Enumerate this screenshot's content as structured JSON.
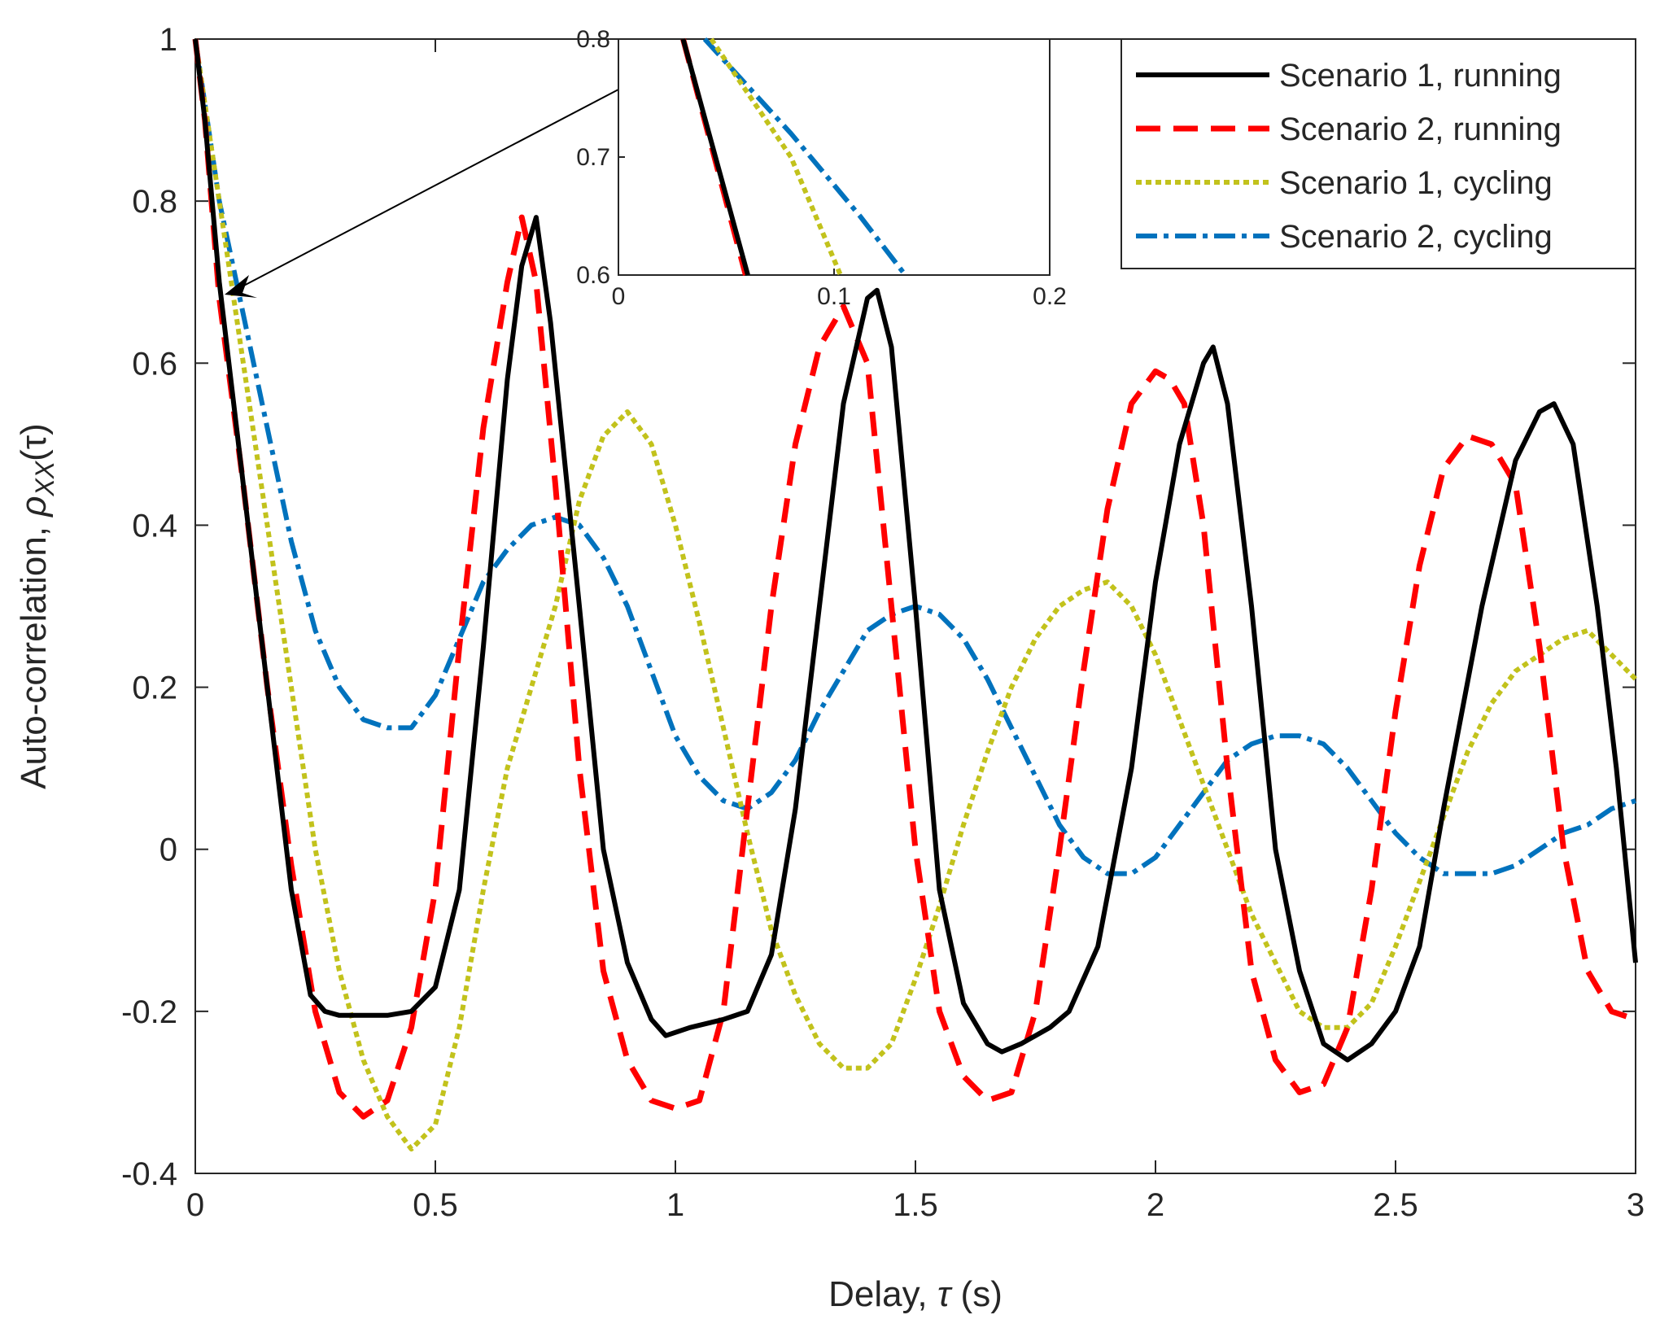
{
  "chart_data": {
    "type": "line",
    "xlabel_prefix": "Delay, ",
    "xlabel_symbol": "τ",
    "xlabel_suffix": " (s)",
    "ylabel_prefix": "Auto-correlation, ",
    "ylabel_symbol": "ρ",
    "ylabel_sub": "XX",
    "ylabel_arg": "(τ)",
    "xlim": [
      0,
      3
    ],
    "ylim": [
      -0.4,
      1
    ],
    "xticks": [
      0,
      0.5,
      1,
      1.5,
      2,
      2.5,
      3
    ],
    "xtick_labels": [
      "0",
      "0.5",
      "1",
      "1.5",
      "2",
      "2.5",
      "3"
    ],
    "yticks": [
      -0.4,
      -0.2,
      0,
      0.2,
      0.4,
      0.6,
      0.8,
      1
    ],
    "ytick_labels": [
      "-0.4",
      "-0.2",
      "0",
      "0.2",
      "0.4",
      "0.6",
      "0.8",
      "1"
    ],
    "legend_position": "top-right",
    "series": [
      {
        "name": "Scenario 1, running",
        "color": "#000000",
        "style": "solid",
        "points": [
          [
            0,
            1
          ],
          [
            0.02,
            0.9
          ],
          [
            0.05,
            0.7
          ],
          [
            0.1,
            0.45
          ],
          [
            0.15,
            0.2
          ],
          [
            0.2,
            -0.05
          ],
          [
            0.24,
            -0.18
          ],
          [
            0.27,
            -0.2
          ],
          [
            0.3,
            -0.205
          ],
          [
            0.35,
            -0.205
          ],
          [
            0.4,
            -0.205
          ],
          [
            0.45,
            -0.2
          ],
          [
            0.5,
            -0.17
          ],
          [
            0.55,
            -0.05
          ],
          [
            0.6,
            0.25
          ],
          [
            0.65,
            0.58
          ],
          [
            0.68,
            0.72
          ],
          [
            0.71,
            0.78
          ],
          [
            0.74,
            0.65
          ],
          [
            0.8,
            0.3
          ],
          [
            0.85,
            0.0
          ],
          [
            0.9,
            -0.14
          ],
          [
            0.95,
            -0.21
          ],
          [
            0.98,
            -0.23
          ],
          [
            1.03,
            -0.22
          ],
          [
            1.1,
            -0.21
          ],
          [
            1.15,
            -0.2
          ],
          [
            1.2,
            -0.13
          ],
          [
            1.25,
            0.05
          ],
          [
            1.3,
            0.3
          ],
          [
            1.35,
            0.55
          ],
          [
            1.4,
            0.68
          ],
          [
            1.42,
            0.69
          ],
          [
            1.45,
            0.62
          ],
          [
            1.5,
            0.3
          ],
          [
            1.55,
            -0.05
          ],
          [
            1.6,
            -0.19
          ],
          [
            1.65,
            -0.24
          ],
          [
            1.68,
            -0.25
          ],
          [
            1.72,
            -0.24
          ],
          [
            1.78,
            -0.22
          ],
          [
            1.82,
            -0.2
          ],
          [
            1.88,
            -0.12
          ],
          [
            1.95,
            0.1
          ],
          [
            2.0,
            0.33
          ],
          [
            2.05,
            0.5
          ],
          [
            2.1,
            0.6
          ],
          [
            2.12,
            0.62
          ],
          [
            2.15,
            0.55
          ],
          [
            2.2,
            0.3
          ],
          [
            2.25,
            0.0
          ],
          [
            2.3,
            -0.15
          ],
          [
            2.35,
            -0.24
          ],
          [
            2.4,
            -0.26
          ],
          [
            2.45,
            -0.24
          ],
          [
            2.5,
            -0.2
          ],
          [
            2.55,
            -0.12
          ],
          [
            2.6,
            0.05
          ],
          [
            2.68,
            0.3
          ],
          [
            2.75,
            0.48
          ],
          [
            2.8,
            0.54
          ],
          [
            2.83,
            0.55
          ],
          [
            2.87,
            0.5
          ],
          [
            2.92,
            0.3
          ],
          [
            2.96,
            0.1
          ],
          [
            3.0,
            -0.14
          ]
        ]
      },
      {
        "name": "Scenario 2, running",
        "color": "#ff0000",
        "style": "dashed",
        "points": [
          [
            0,
            1
          ],
          [
            0.02,
            0.9
          ],
          [
            0.05,
            0.68
          ],
          [
            0.1,
            0.45
          ],
          [
            0.15,
            0.2
          ],
          [
            0.2,
            -0.02
          ],
          [
            0.25,
            -0.2
          ],
          [
            0.3,
            -0.3
          ],
          [
            0.35,
            -0.33
          ],
          [
            0.4,
            -0.31
          ],
          [
            0.45,
            -0.22
          ],
          [
            0.5,
            -0.05
          ],
          [
            0.55,
            0.25
          ],
          [
            0.6,
            0.52
          ],
          [
            0.65,
            0.7
          ],
          [
            0.68,
            0.78
          ],
          [
            0.71,
            0.7
          ],
          [
            0.75,
            0.45
          ],
          [
            0.8,
            0.1
          ],
          [
            0.85,
            -0.15
          ],
          [
            0.9,
            -0.26
          ],
          [
            0.95,
            -0.31
          ],
          [
            1.0,
            -0.32
          ],
          [
            1.05,
            -0.31
          ],
          [
            1.1,
            -0.2
          ],
          [
            1.15,
            0.05
          ],
          [
            1.2,
            0.3
          ],
          [
            1.25,
            0.5
          ],
          [
            1.3,
            0.62
          ],
          [
            1.35,
            0.67
          ],
          [
            1.4,
            0.6
          ],
          [
            1.45,
            0.3
          ],
          [
            1.5,
            0.0
          ],
          [
            1.55,
            -0.2
          ],
          [
            1.6,
            -0.28
          ],
          [
            1.65,
            -0.31
          ],
          [
            1.7,
            -0.3
          ],
          [
            1.75,
            -0.2
          ],
          [
            1.8,
            0.0
          ],
          [
            1.85,
            0.22
          ],
          [
            1.9,
            0.42
          ],
          [
            1.95,
            0.55
          ],
          [
            2.0,
            0.59
          ],
          [
            2.03,
            0.58
          ],
          [
            2.06,
            0.55
          ],
          [
            2.1,
            0.4
          ],
          [
            2.15,
            0.1
          ],
          [
            2.2,
            -0.15
          ],
          [
            2.25,
            -0.26
          ],
          [
            2.3,
            -0.3
          ],
          [
            2.35,
            -0.29
          ],
          [
            2.4,
            -0.22
          ],
          [
            2.45,
            -0.05
          ],
          [
            2.5,
            0.17
          ],
          [
            2.55,
            0.35
          ],
          [
            2.6,
            0.47
          ],
          [
            2.65,
            0.51
          ],
          [
            2.7,
            0.5
          ],
          [
            2.75,
            0.45
          ],
          [
            2.8,
            0.25
          ],
          [
            2.85,
            0.0
          ],
          [
            2.9,
            -0.15
          ],
          [
            2.95,
            -0.2
          ],
          [
            3.0,
            -0.21
          ]
        ]
      },
      {
        "name": "Scenario 1, cycling",
        "color": "#c2c21c",
        "style": "dotted",
        "points": [
          [
            0,
            1
          ],
          [
            0.05,
            0.8
          ],
          [
            0.1,
            0.6
          ],
          [
            0.15,
            0.4
          ],
          [
            0.2,
            0.2
          ],
          [
            0.25,
            0.0
          ],
          [
            0.3,
            -0.15
          ],
          [
            0.35,
            -0.26
          ],
          [
            0.4,
            -0.33
          ],
          [
            0.45,
            -0.37
          ],
          [
            0.5,
            -0.34
          ],
          [
            0.55,
            -0.22
          ],
          [
            0.6,
            -0.05
          ],
          [
            0.65,
            0.1
          ],
          [
            0.7,
            0.2
          ],
          [
            0.75,
            0.3
          ],
          [
            0.8,
            0.43
          ],
          [
            0.85,
            0.51
          ],
          [
            0.9,
            0.54
          ],
          [
            0.95,
            0.5
          ],
          [
            1.0,
            0.4
          ],
          [
            1.05,
            0.28
          ],
          [
            1.1,
            0.15
          ],
          [
            1.15,
            0.02
          ],
          [
            1.2,
            -0.1
          ],
          [
            1.25,
            -0.18
          ],
          [
            1.3,
            -0.24
          ],
          [
            1.35,
            -0.27
          ],
          [
            1.4,
            -0.27
          ],
          [
            1.45,
            -0.24
          ],
          [
            1.5,
            -0.16
          ],
          [
            1.55,
            -0.07
          ],
          [
            1.6,
            0.03
          ],
          [
            1.65,
            0.12
          ],
          [
            1.7,
            0.2
          ],
          [
            1.75,
            0.26
          ],
          [
            1.8,
            0.3
          ],
          [
            1.85,
            0.32
          ],
          [
            1.9,
            0.33
          ],
          [
            1.95,
            0.3
          ],
          [
            2.0,
            0.24
          ],
          [
            2.05,
            0.16
          ],
          [
            2.1,
            0.08
          ],
          [
            2.15,
            0.0
          ],
          [
            2.2,
            -0.08
          ],
          [
            2.25,
            -0.14
          ],
          [
            2.3,
            -0.2
          ],
          [
            2.35,
            -0.22
          ],
          [
            2.4,
            -0.22
          ],
          [
            2.45,
            -0.19
          ],
          [
            2.5,
            -0.12
          ],
          [
            2.55,
            -0.04
          ],
          [
            2.6,
            0.04
          ],
          [
            2.65,
            0.12
          ],
          [
            2.7,
            0.18
          ],
          [
            2.75,
            0.22
          ],
          [
            2.8,
            0.24
          ],
          [
            2.85,
            0.26
          ],
          [
            2.9,
            0.27
          ],
          [
            2.95,
            0.24
          ],
          [
            3.0,
            0.21
          ]
        ]
      },
      {
        "name": "Scenario 2, cycling",
        "color": "#0072bd",
        "style": "dashdot",
        "points": [
          [
            0,
            1
          ],
          [
            0.02,
            0.92
          ],
          [
            0.05,
            0.8
          ],
          [
            0.1,
            0.66
          ],
          [
            0.15,
            0.52
          ],
          [
            0.2,
            0.38
          ],
          [
            0.25,
            0.27
          ],
          [
            0.3,
            0.2
          ],
          [
            0.35,
            0.16
          ],
          [
            0.4,
            0.15
          ],
          [
            0.45,
            0.15
          ],
          [
            0.5,
            0.19
          ],
          [
            0.55,
            0.26
          ],
          [
            0.6,
            0.33
          ],
          [
            0.65,
            0.37
          ],
          [
            0.7,
            0.4
          ],
          [
            0.75,
            0.41
          ],
          [
            0.8,
            0.4
          ],
          [
            0.85,
            0.36
          ],
          [
            0.9,
            0.3
          ],
          [
            0.95,
            0.22
          ],
          [
            1.0,
            0.14
          ],
          [
            1.05,
            0.09
          ],
          [
            1.1,
            0.06
          ],
          [
            1.15,
            0.05
          ],
          [
            1.2,
            0.07
          ],
          [
            1.25,
            0.11
          ],
          [
            1.3,
            0.17
          ],
          [
            1.35,
            0.22
          ],
          [
            1.4,
            0.27
          ],
          [
            1.45,
            0.29
          ],
          [
            1.5,
            0.3
          ],
          [
            1.55,
            0.29
          ],
          [
            1.6,
            0.26
          ],
          [
            1.65,
            0.21
          ],
          [
            1.7,
            0.15
          ],
          [
            1.75,
            0.09
          ],
          [
            1.8,
            0.03
          ],
          [
            1.85,
            -0.01
          ],
          [
            1.9,
            -0.03
          ],
          [
            1.95,
            -0.03
          ],
          [
            2.0,
            -0.01
          ],
          [
            2.05,
            0.03
          ],
          [
            2.1,
            0.07
          ],
          [
            2.15,
            0.11
          ],
          [
            2.2,
            0.13
          ],
          [
            2.25,
            0.14
          ],
          [
            2.3,
            0.14
          ],
          [
            2.35,
            0.13
          ],
          [
            2.4,
            0.1
          ],
          [
            2.45,
            0.06
          ],
          [
            2.5,
            0.02
          ],
          [
            2.55,
            -0.01
          ],
          [
            2.6,
            -0.03
          ],
          [
            2.65,
            -0.03
          ],
          [
            2.7,
            -0.03
          ],
          [
            2.75,
            -0.02
          ],
          [
            2.8,
            0.0
          ],
          [
            2.85,
            0.02
          ],
          [
            2.9,
            0.03
          ],
          [
            2.95,
            0.05
          ],
          [
            3.0,
            0.06
          ]
        ]
      }
    ],
    "inset": {
      "xlim": [
        0,
        0.2
      ],
      "ylim": [
        0.6,
        0.8
      ],
      "xticks": [
        0,
        0.1,
        0.2
      ],
      "xtick_labels": [
        "0",
        "0.1",
        "0.2"
      ],
      "yticks": [
        0.6,
        0.7,
        0.8
      ],
      "ytick_labels": [
        "0.6",
        "0.7",
        "0.8"
      ],
      "series": [
        {
          "name": "Scenario 1, running",
          "points": [
            [
              0.03,
              0.8
            ],
            [
              0.06,
              0.6
            ]
          ]
        },
        {
          "name": "Scenario 2, running",
          "points": [
            [
              0.03,
              0.8
            ],
            [
              0.059,
              0.6
            ]
          ]
        },
        {
          "name": "Scenario 1, cycling",
          "points": [
            [
              0.043,
              0.8
            ],
            [
              0.08,
              0.7
            ],
            [
              0.103,
              0.6
            ]
          ]
        },
        {
          "name": "Scenario 2, cycling",
          "points": [
            [
              0.04,
              0.8
            ],
            [
              0.08,
              0.72
            ],
            [
              0.112,
              0.65
            ],
            [
              0.133,
              0.6
            ]
          ]
        }
      ]
    }
  }
}
